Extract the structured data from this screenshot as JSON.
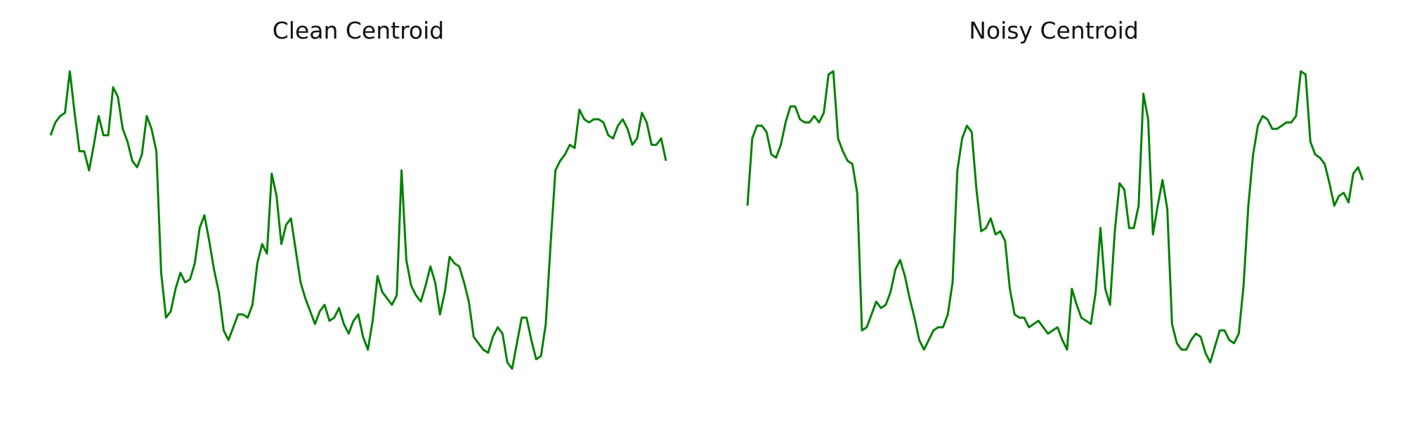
{
  "chart_data": [
    {
      "type": "line",
      "title": "Clean Centroid",
      "xlabel": "",
      "ylabel": "",
      "grid": false,
      "axes_visible": false,
      "ylim": [
        0,
        1
      ],
      "colors": {
        "line": "#008000"
      },
      "series": [
        {
          "values": [
            0.79,
            0.83,
            0.85,
            0.86,
            0.99,
            0.86,
            0.74,
            0.74,
            0.68,
            0.76,
            0.85,
            0.79,
            0.79,
            0.94,
            0.91,
            0.81,
            0.77,
            0.71,
            0.69,
            0.73,
            0.85,
            0.81,
            0.74,
            0.36,
            0.22,
            0.24,
            0.31,
            0.36,
            0.33,
            0.34,
            0.39,
            0.5,
            0.54,
            0.46,
            0.37,
            0.3,
            0.18,
            0.15,
            0.19,
            0.23,
            0.23,
            0.22,
            0.26,
            0.39,
            0.45,
            0.42,
            0.67,
            0.6,
            0.45,
            0.51,
            0.53,
            0.43,
            0.33,
            0.28,
            0.24,
            0.2,
            0.24,
            0.26,
            0.21,
            0.22,
            0.25,
            0.2,
            0.17,
            0.21,
            0.23,
            0.16,
            0.12,
            0.21,
            0.35,
            0.3,
            0.28,
            0.26,
            0.29,
            0.68,
            0.4,
            0.32,
            0.29,
            0.27,
            0.32,
            0.38,
            0.33,
            0.23,
            0.3,
            0.41,
            0.39,
            0.38,
            0.33,
            0.27,
            0.16,
            0.14,
            0.12,
            0.11,
            0.16,
            0.19,
            0.17,
            0.08,
            0.06,
            0.14,
            0.22,
            0.22,
            0.15,
            0.09,
            0.1,
            0.2,
            0.45,
            0.68,
            0.71,
            0.73,
            0.76,
            0.75,
            0.87,
            0.84,
            0.83,
            0.84,
            0.84,
            0.83,
            0.79,
            0.78,
            0.82,
            0.84,
            0.81,
            0.76,
            0.78,
            0.86,
            0.83,
            0.76,
            0.76,
            0.78,
            0.71
          ]
        }
      ]
    },
    {
      "type": "line",
      "title": "Noisy Centroid",
      "xlabel": "",
      "ylabel": "",
      "grid": false,
      "axes_visible": false,
      "ylim": [
        0,
        1
      ],
      "colors": {
        "line": "#008000"
      },
      "series": [
        {
          "values": [
            0.57,
            0.78,
            0.82,
            0.82,
            0.8,
            0.73,
            0.72,
            0.76,
            0.83,
            0.88,
            0.88,
            0.84,
            0.83,
            0.83,
            0.85,
            0.83,
            0.86,
            0.98,
            0.99,
            0.78,
            0.74,
            0.71,
            0.7,
            0.61,
            0.18,
            0.19,
            0.23,
            0.27,
            0.25,
            0.26,
            0.3,
            0.37,
            0.4,
            0.35,
            0.28,
            0.22,
            0.15,
            0.12,
            0.15,
            0.18,
            0.19,
            0.19,
            0.23,
            0.33,
            0.68,
            0.78,
            0.82,
            0.8,
            0.62,
            0.49,
            0.5,
            0.53,
            0.48,
            0.49,
            0.46,
            0.31,
            0.23,
            0.22,
            0.22,
            0.19,
            0.2,
            0.21,
            0.19,
            0.17,
            0.18,
            0.19,
            0.15,
            0.12,
            0.31,
            0.26,
            0.22,
            0.21,
            0.2,
            0.3,
            0.5,
            0.31,
            0.26,
            0.49,
            0.64,
            0.62,
            0.5,
            0.5,
            0.57,
            0.92,
            0.84,
            0.48,
            0.57,
            0.65,
            0.56,
            0.2,
            0.14,
            0.12,
            0.12,
            0.15,
            0.17,
            0.16,
            0.11,
            0.08,
            0.13,
            0.18,
            0.18,
            0.15,
            0.14,
            0.17,
            0.32,
            0.57,
            0.73,
            0.82,
            0.85,
            0.84,
            0.81,
            0.81,
            0.82,
            0.83,
            0.83,
            0.85,
            0.99,
            0.98,
            0.77,
            0.73,
            0.72,
            0.7,
            0.64,
            0.57,
            0.6,
            0.61,
            0.58,
            0.67,
            0.69,
            0.65
          ]
        }
      ]
    }
  ]
}
